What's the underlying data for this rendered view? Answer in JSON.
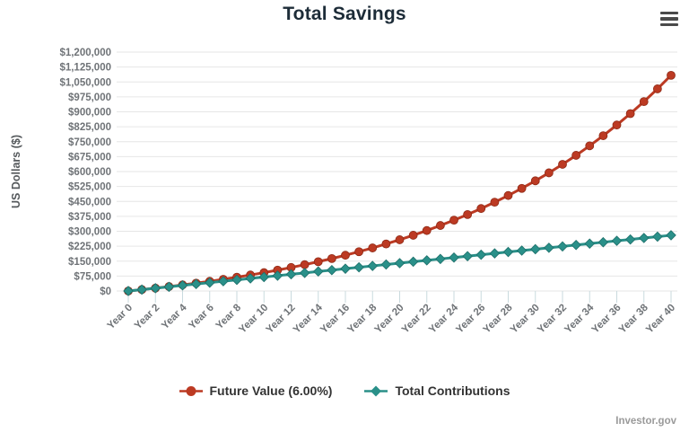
{
  "header": {
    "menu_icon": "hamburger-icon"
  },
  "branding": {
    "watermark": "Investor.gov"
  },
  "colors": {
    "future_value": "#bc3a23",
    "future_value_dark": "#8e2a16",
    "contributions": "#2a9089",
    "contributions_dark": "#1d6f6a",
    "grid": "#e6e6e6",
    "tick": "#c9dade",
    "axis_text": "#6f7377",
    "axis_title_text": "#55595c",
    "title_text": "#1d2c38",
    "legend_text": "#333333",
    "hamburger": "#4a4a4a",
    "watermark_text": "#9a9a9a"
  },
  "chart_data": {
    "type": "line",
    "title": "Total Savings",
    "xlabel": "",
    "ylabel": "US Dollars ($)",
    "x": [
      "Year 0",
      "Year 1",
      "Year 2",
      "Year 3",
      "Year 4",
      "Year 5",
      "Year 6",
      "Year 7",
      "Year 8",
      "Year 9",
      "Year 10",
      "Year 11",
      "Year 12",
      "Year 13",
      "Year 14",
      "Year 15",
      "Year 16",
      "Year 17",
      "Year 18",
      "Year 19",
      "Year 20",
      "Year 21",
      "Year 22",
      "Year 23",
      "Year 24",
      "Year 25",
      "Year 26",
      "Year 27",
      "Year 28",
      "Year 29",
      "Year 30",
      "Year 31",
      "Year 32",
      "Year 33",
      "Year 34",
      "Year 35",
      "Year 36",
      "Year 37",
      "Year 38",
      "Year 39",
      "Year 40"
    ],
    "x_tick_step": 2,
    "ylim": [
      0,
      1200000
    ],
    "y_tick_interval": 75000,
    "y_tick_format": "currency",
    "grid": "horizontal",
    "legend_position": "bottom",
    "series": [
      {
        "name": "Future Value (6.00%)",
        "marker": "circle",
        "color": "#bc3a23",
        "values": [
          0,
          7000,
          14420,
          22285,
          30622,
          39460,
          48827,
          58757,
          69282,
          80439,
          92266,
          104802,
          118090,
          132175,
          147106,
          162932,
          179708,
          197490,
          216340,
          236320,
          257499,
          279949,
          303746,
          328971,
          355709,
          384052,
          414095,
          445940,
          479697,
          515479,
          553407,
          593612,
          636228,
          681402,
          729286,
          780044,
          833846,
          890877,
          951329,
          1015409,
          1083334
        ]
      },
      {
        "name": "Total Contributions",
        "marker": "diamond",
        "color": "#2a9089",
        "values": [
          0,
          7000,
          14000,
          21000,
          28000,
          35000,
          42000,
          49000,
          56000,
          63000,
          70000,
          77000,
          84000,
          91000,
          98000,
          105000,
          112000,
          119000,
          126000,
          133000,
          140000,
          147000,
          154000,
          161000,
          168000,
          175000,
          182000,
          189000,
          196000,
          203000,
          210000,
          217000,
          224000,
          231000,
          238000,
          245000,
          252000,
          259000,
          266000,
          273000,
          280000
        ]
      }
    ]
  }
}
